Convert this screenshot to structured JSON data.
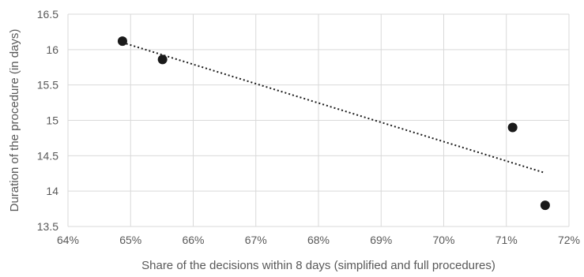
{
  "chart_data": {
    "type": "scatter",
    "xlabel": "Share of the decisions within 8 days (simplified and full procedures)",
    "ylabel": "Duration of the procedure (in days)",
    "xlim": [
      0.64,
      0.72
    ],
    "ylim": [
      13.5,
      16.5
    ],
    "x_ticks": [
      0.64,
      0.65,
      0.66,
      0.67,
      0.68,
      0.69,
      0.7,
      0.71,
      0.72
    ],
    "x_tick_labels": [
      "64%",
      "65%",
      "66%",
      "67%",
      "68%",
      "69%",
      "70%",
      "71%",
      "72%"
    ],
    "y_ticks": [
      13.5,
      14,
      14.5,
      15,
      15.5,
      16,
      16.5
    ],
    "y_tick_labels": [
      "13.5",
      "14",
      "14.5",
      "15",
      "15.5",
      "16",
      "16.5"
    ],
    "grid": true,
    "points": [
      {
        "x": 0.6487,
        "y": 16.12
      },
      {
        "x": 0.6551,
        "y": 15.86
      },
      {
        "x": 0.711,
        "y": 14.9
      },
      {
        "x": 0.7162,
        "y": 13.8
      }
    ],
    "trendline": {
      "type": "linear",
      "style": "dotted"
    },
    "colors": {
      "points": "#1a1a1a",
      "grid": "#d9d9d9",
      "text": "#595959"
    }
  }
}
